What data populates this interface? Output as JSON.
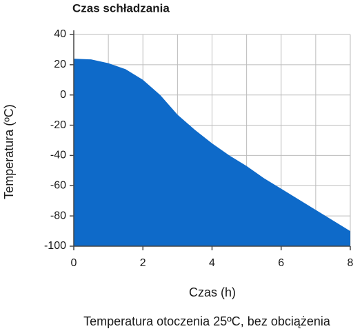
{
  "chart_data": {
    "type": "area",
    "title": "Czas schładzania",
    "x_label": "Czas (h)",
    "y_label": "Temperatura (ºC)",
    "footer": "Temperatura otoczenia 25ºC, bez obciążenia",
    "x": [
      0,
      0.5,
      1,
      1.5,
      2,
      2.5,
      3,
      3.5,
      4,
      4.5,
      5,
      5.5,
      6,
      6.5,
      7,
      7.5,
      8
    ],
    "values": [
      24,
      23.5,
      21,
      17,
      10,
      0,
      -13,
      -23,
      -32,
      -40,
      -47,
      -55,
      -62,
      -69,
      -76,
      -83,
      -90
    ],
    "color": "#0e6ac9",
    "xlim": [
      0,
      8
    ],
    "xticks": [
      0,
      2,
      4,
      6,
      8
    ],
    "x_grid_step": 1,
    "ylim": [
      -100,
      40
    ],
    "yticks": [
      -100,
      -80,
      -60,
      -40,
      -20,
      0,
      20,
      40
    ],
    "grid": true
  }
}
